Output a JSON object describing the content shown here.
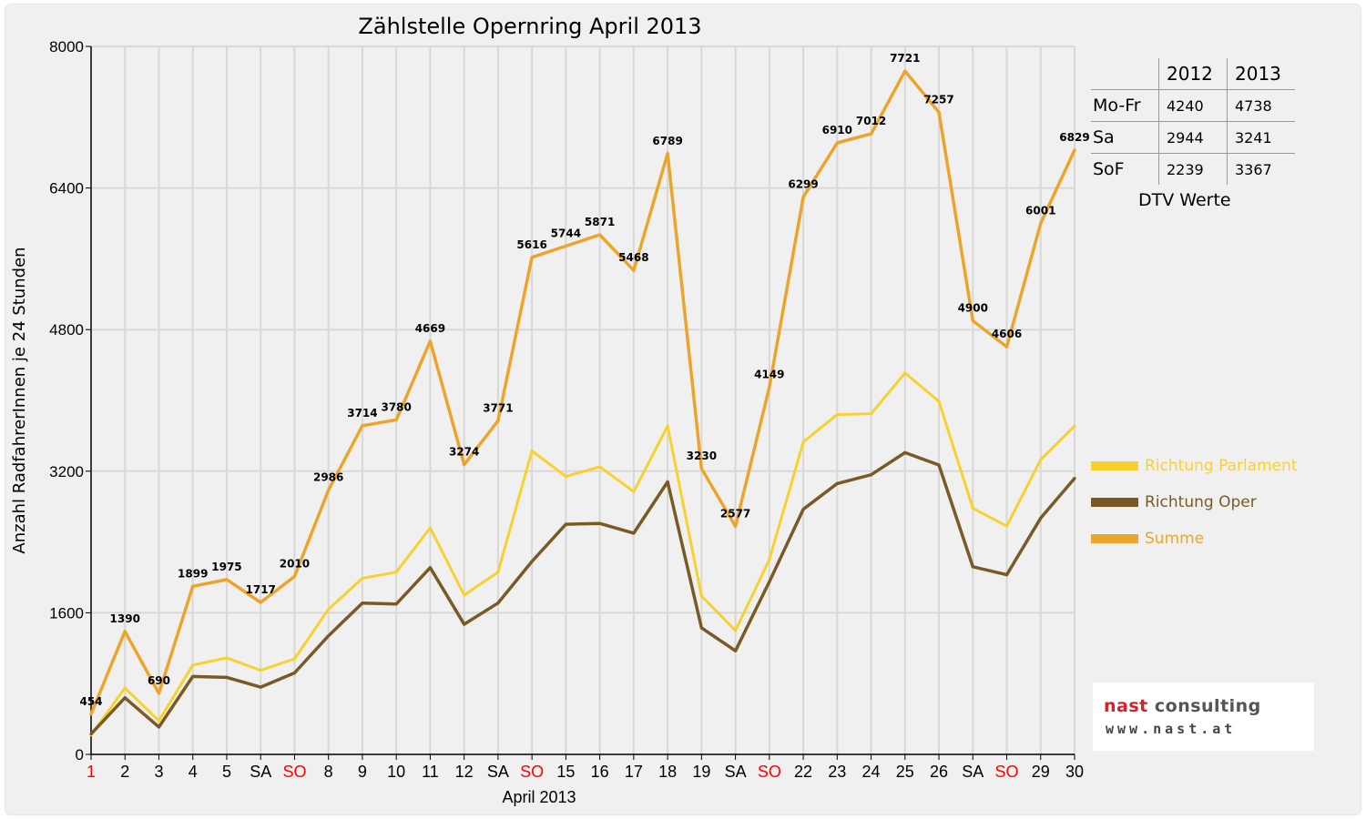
{
  "colors": {
    "parlament": "#f7d22e",
    "oper": "#7a5a24",
    "summe": "#eba52b",
    "weekend_label": "#ff0000",
    "grid": "#d8d8d8",
    "logo_red": "#d6202a",
    "logo_grey": "#555555"
  },
  "chart_data": {
    "type": "line",
    "title": "Zählstelle Opernring April 2013",
    "xlabel": "April 2013",
    "ylabel": "Anzahl RadfahrerInnen je 24 Stunden",
    "ylim": [
      0,
      8000
    ],
    "yticks": [
      0,
      1600,
      3200,
      4800,
      6400,
      8000
    ],
    "grid": true,
    "legend_position": "right",
    "categories": [
      "1",
      "2",
      "3",
      "4",
      "5",
      "SA",
      "SO",
      "8",
      "9",
      "10",
      "11",
      "12",
      "SA",
      "SO",
      "15",
      "16",
      "17",
      "18",
      "19",
      "SA",
      "SO",
      "22",
      "23",
      "24",
      "25",
      "26",
      "SA",
      "SO",
      "29",
      "30"
    ],
    "category_colors": [
      "red",
      "black",
      "black",
      "black",
      "black",
      "black",
      "red",
      "black",
      "black",
      "black",
      "black",
      "black",
      "black",
      "red",
      "black",
      "black",
      "black",
      "black",
      "black",
      "black",
      "red",
      "black",
      "black",
      "black",
      "black",
      "black",
      "black",
      "red",
      "black",
      "black"
    ],
    "series": [
      {
        "name": "Richtung Parlament",
        "color_key": "parlament",
        "values": [
          220,
          750,
          380,
          1010,
          1090,
          950,
          1080,
          1640,
          1990,
          2060,
          2560,
          1800,
          2060,
          3430,
          3140,
          3250,
          2970,
          3710,
          1790,
          1400,
          2200,
          3530,
          3840,
          3850,
          4310,
          3990,
          2780,
          2580,
          3330,
          3710
        ]
      },
      {
        "name": "Richtung Oper",
        "color_key": "oper",
        "values": [
          230,
          640,
          310,
          880,
          870,
          760,
          920,
          1340,
          1710,
          1700,
          2110,
          1470,
          1710,
          2180,
          2600,
          2610,
          2500,
          3080,
          1430,
          1170,
          1950,
          2770,
          3060,
          3160,
          3410,
          3270,
          2120,
          2030,
          2670,
          3120
        ]
      },
      {
        "name": "Summe",
        "color_key": "summe",
        "values": [
          454,
          1390,
          690,
          1899,
          1975,
          1717,
          2010,
          2986,
          3714,
          3780,
          4669,
          3274,
          3771,
          5616,
          5744,
          5871,
          5468,
          6789,
          3230,
          2577,
          4149,
          6299,
          6910,
          7012,
          7721,
          7257,
          4900,
          4606,
          6001,
          6829
        ],
        "data_labels": [
          "454",
          "1390",
          "690",
          "1899",
          "1975",
          "1717",
          "2010",
          "2986",
          "3714",
          "3780",
          "4669",
          "3274",
          "3771",
          "5616",
          "5744",
          "5871",
          "5468",
          "6789",
          "3230",
          "2577",
          "4149",
          "6299",
          "6910",
          "7012",
          "7721",
          "7257",
          "4900",
          "4606",
          "6001",
          "6829"
        ]
      }
    ]
  },
  "dtv_table": {
    "years": [
      "2012",
      "2013"
    ],
    "rows": [
      {
        "label": "Mo-Fr",
        "v2012": "4240",
        "v2013": "4738"
      },
      {
        "label": "Sa",
        "v2012": "2944",
        "v2013": "3241"
      },
      {
        "label": "SoF",
        "v2012": "2239",
        "v2013": "3367"
      }
    ],
    "caption": "DTV Werte"
  },
  "logo": {
    "name_part1": "nast",
    "name_part2": "consulting",
    "url": "www.nast.at"
  }
}
